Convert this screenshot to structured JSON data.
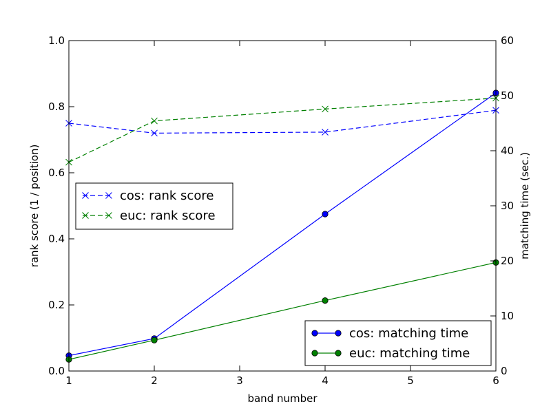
{
  "chart_data": {
    "type": "line",
    "xlabel": "band number",
    "ylabel_left": "rank score (1 / position)",
    "ylabel_right": "matching time (sec.)",
    "xlim": [
      1,
      6
    ],
    "ylim_left": [
      0.0,
      1.0
    ],
    "ylim_right": [
      0,
      60
    ],
    "x_ticks": [
      "1",
      "2",
      "3",
      "4",
      "5",
      "6"
    ],
    "y_left_ticks": [
      "0.0",
      "0.2",
      "0.4",
      "0.6",
      "0.8",
      "1.0"
    ],
    "y_right_ticks": [
      "0",
      "10",
      "20",
      "30",
      "40",
      "50",
      "60"
    ],
    "grid": false,
    "series": [
      {
        "name": "cos: rank score",
        "axis": "left",
        "color": "#0000ff",
        "linestyle": "dashed",
        "marker": "x",
        "x": [
          1,
          2,
          4,
          6
        ],
        "values": [
          0.75,
          0.72,
          0.723,
          0.789
        ]
      },
      {
        "name": "euc: rank score",
        "axis": "left",
        "color": "#008000",
        "linestyle": "dashed",
        "marker": "x",
        "x": [
          1,
          2,
          4,
          6
        ],
        "values": [
          0.632,
          0.757,
          0.793,
          0.826
        ]
      },
      {
        "name": "cos: matching time",
        "axis": "right",
        "color": "#0000ff",
        "linestyle": "solid",
        "marker": "o",
        "x": [
          1,
          2,
          4,
          6
        ],
        "values": [
          2.8,
          5.9,
          28.5,
          50.5
        ]
      },
      {
        "name": "euc: matching time",
        "axis": "right",
        "color": "#008000",
        "linestyle": "solid",
        "marker": "o",
        "x": [
          1,
          2,
          4,
          6
        ],
        "values": [
          2.1,
          5.6,
          12.8,
          19.7
        ]
      }
    ],
    "legends": [
      {
        "placement": "center-left",
        "entries": [
          "cos: rank score",
          "euc: rank score"
        ]
      },
      {
        "placement": "lower-right",
        "entries": [
          "cos: matching time",
          "euc: matching time"
        ]
      }
    ]
  }
}
